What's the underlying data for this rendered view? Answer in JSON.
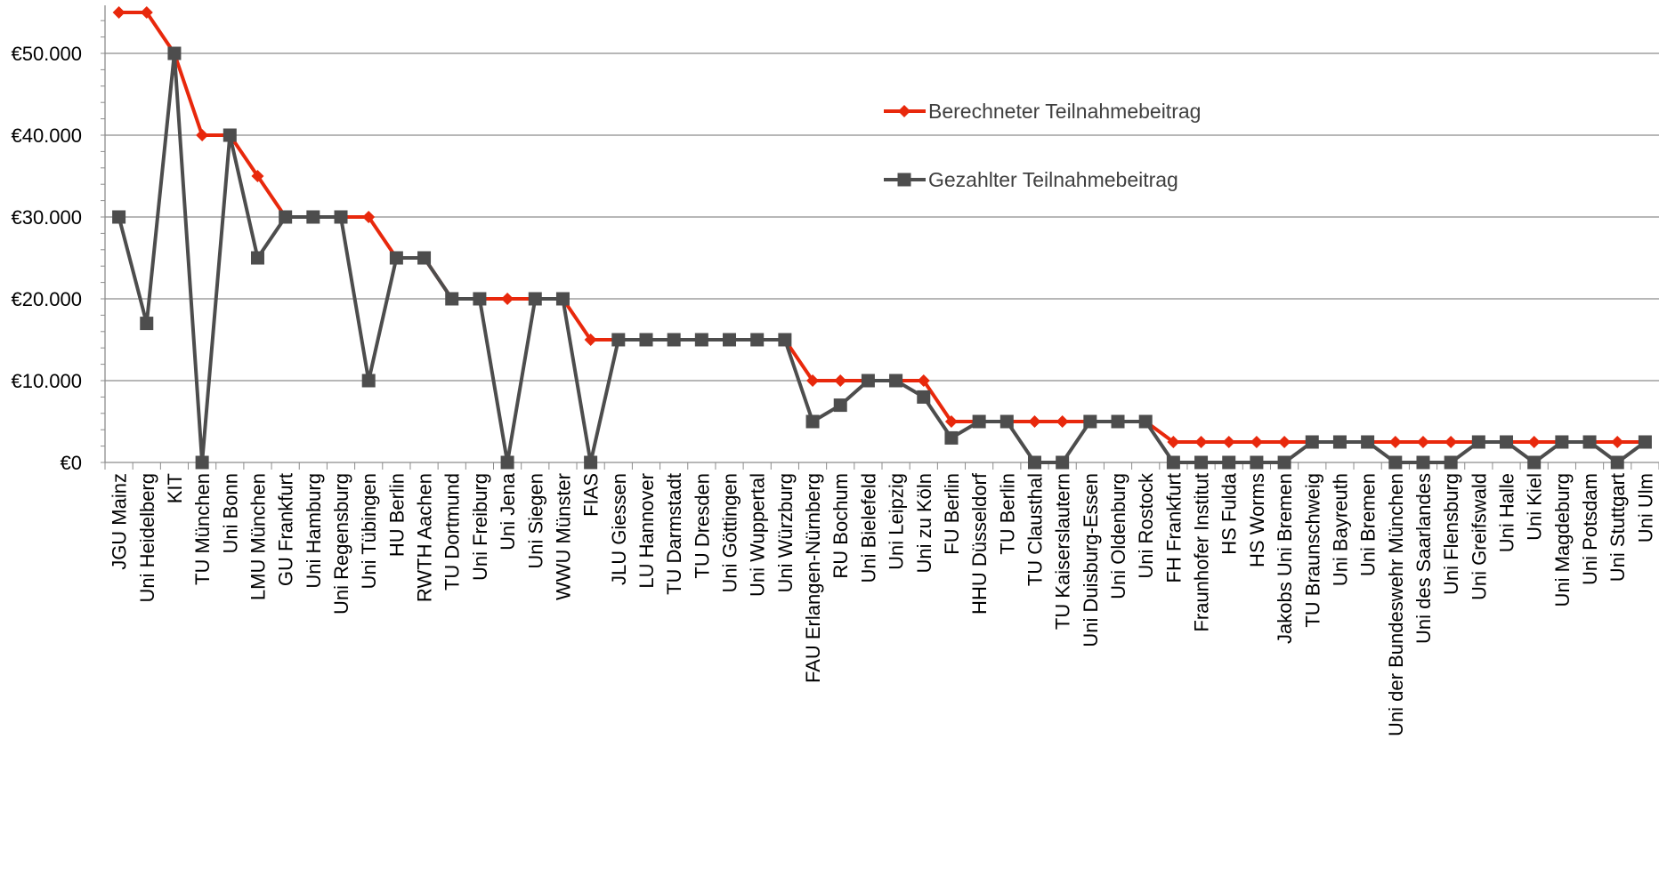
{
  "chart_data": {
    "type": "line",
    "categories": [
      "JGU Mainz",
      "Uni Heidelberg",
      "KIT",
      "TU München",
      "Uni Bonn",
      "LMU München",
      "GU Frankfurt",
      "Uni Hamburg",
      "Uni Regensburg",
      "Uni Tübingen",
      "HU Berlin",
      "RWTH Aachen",
      "TU Dortmund",
      "Uni Freiburg",
      "Uni Jena",
      "Uni Siegen",
      "WWU Münster",
      "FIAS",
      "JLU Giessen",
      "LU Hannover",
      "TU Darmstadt",
      "TU Dresden",
      "Uni Göttingen",
      "Uni Wuppertal",
      "Uni Würzburg",
      "FAU Erlangen-Nürnberg",
      "RU Bochum",
      "Uni Bielefeld",
      "Uni Leipzig",
      "Uni zu Köln",
      "FU Berlin",
      "HHU Düsseldorf",
      "TU Berlin",
      "TU Clausthal",
      "TU Kaiserslautern",
      "Uni Duisburg-Essen",
      "Uni Oldenburg",
      "Uni Rostock",
      "FH Frankfurt",
      "Fraunhofer Institut",
      "HS Fulda",
      "HS Worms",
      "Jakobs Uni Bremen",
      "TU Braunschweig",
      "Uni Bayreuth",
      "Uni Bremen",
      "Uni der Bundeswehr München",
      "Uni des Saarlandes",
      "Uni Flensburg",
      "Uni Greifswald",
      "Uni Halle",
      "Uni Kiel",
      "Uni Magdeburg",
      "Uni Potsdam",
      "Uni Stuttgart",
      "Uni Ulm"
    ],
    "series": [
      {
        "name": "Berechneter Teilnahmebeitrag",
        "color": "#e8280c",
        "marker": "diamond",
        "values": [
          55000,
          55000,
          50000,
          40000,
          40000,
          35000,
          30000,
          30000,
          30000,
          30000,
          25000,
          25000,
          20000,
          20000,
          20000,
          20000,
          20000,
          15000,
          15000,
          15000,
          15000,
          15000,
          15000,
          15000,
          15000,
          10000,
          10000,
          10000,
          10000,
          10000,
          5000,
          5000,
          5000,
          5000,
          5000,
          5000,
          5000,
          5000,
          2500,
          2500,
          2500,
          2500,
          2500,
          2500,
          2500,
          2500,
          2500,
          2500,
          2500,
          2500,
          2500,
          2500,
          2500,
          2500,
          2500,
          2500
        ]
      },
      {
        "name": "Gezahlter Teilnahmebeitrag",
        "color": "#4d4d4d",
        "marker": "square",
        "values": [
          30000,
          17000,
          50000,
          0,
          40000,
          25000,
          30000,
          30000,
          30000,
          10000,
          25000,
          25000,
          20000,
          20000,
          0,
          20000,
          20000,
          0,
          15000,
          15000,
          15000,
          15000,
          15000,
          15000,
          15000,
          5000,
          7000,
          10000,
          10000,
          8000,
          3000,
          5000,
          5000,
          0,
          0,
          5000,
          5000,
          5000,
          0,
          0,
          0,
          0,
          0,
          2500,
          2500,
          2500,
          0,
          0,
          0,
          2500,
          2500,
          0,
          2500,
          2500,
          0,
          2500
        ]
      }
    ],
    "yticks": [
      "€0",
      "€10.000",
      "€20.000",
      "€30.000",
      "€40.000",
      "€50.000"
    ],
    "ytick_values": [
      0,
      10000,
      20000,
      30000,
      40000,
      50000
    ],
    "ylim": [
      0,
      55000
    ],
    "grid": true,
    "legend_position": "right"
  }
}
